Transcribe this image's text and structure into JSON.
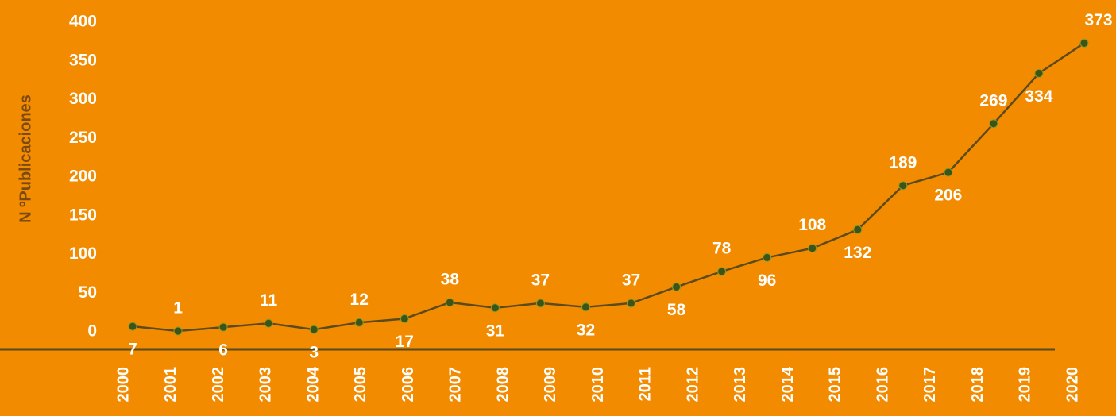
{
  "chart_data": {
    "type": "line",
    "y_label": "N ºPublicaciones",
    "categories": [
      "2000",
      "2001",
      "2002",
      "2003",
      "2004",
      "2005",
      "2006",
      "2007",
      "2008",
      "2009",
      "2010",
      "2011",
      "2012",
      "2013",
      "2014",
      "2015",
      "2016",
      "2017",
      "2018",
      "2019",
      "2020",
      null
    ],
    "series": [
      {
        "name": "Publicaciones",
        "color": "#5b4a1c",
        "values": [
          7,
          1,
          6,
          11,
          3,
          12,
          17,
          38,
          31,
          37,
          32,
          37,
          58,
          78,
          96,
          108,
          132,
          189,
          206,
          269,
          334,
          373
        ]
      }
    ],
    "ylim": [
      0,
      400
    ],
    "yticks": [
      0,
      50,
      100,
      150,
      200,
      250,
      300,
      350,
      400
    ],
    "grid": false
  }
}
